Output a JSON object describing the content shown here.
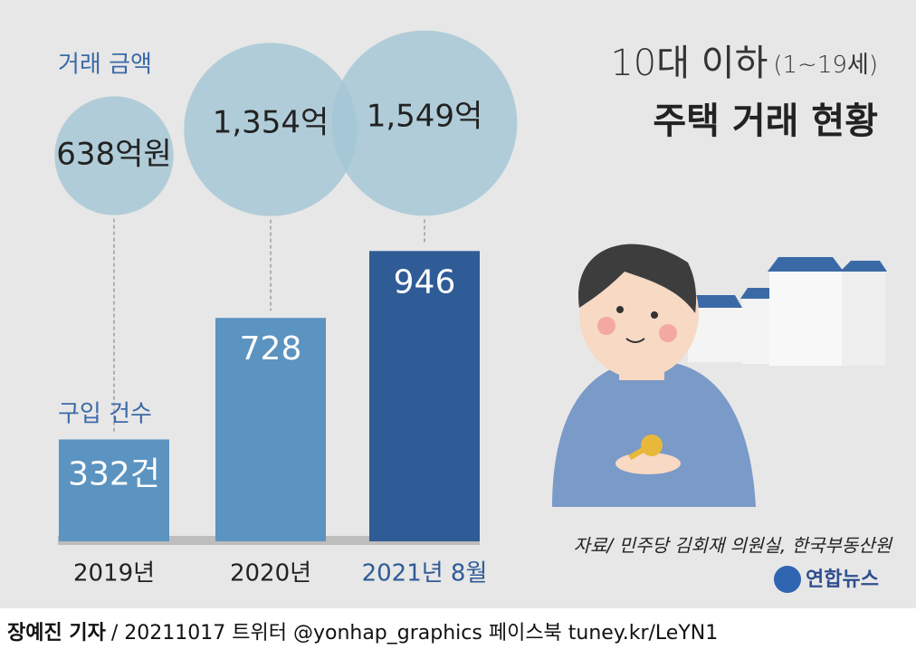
{
  "chart_data": {
    "type": "bar",
    "title": "10대 이하",
    "title_note": "(1~19세)",
    "subtitle": "주택 거래 현황",
    "categories": [
      "2019년",
      "2020년",
      "2021년 8월"
    ],
    "series": [
      {
        "name": "구입 건수",
        "colors": [
          "#5b93c1",
          "#5b93c1",
          "#2f5b96"
        ],
        "values": [
          332,
          728,
          946
        ],
        "value_labels": [
          "332건",
          "728",
          "946"
        ]
      },
      {
        "name": "거래 금액",
        "color": "#a4c6d4",
        "values": [
          638,
          1354,
          1549
        ],
        "value_labels": [
          "638억원",
          "1,354억",
          "1,549억"
        ]
      }
    ],
    "source": "자료/ 민주당 김회재 의원실, 한국부동산원",
    "logo": "연합뉴스",
    "byline": "장예진 기자",
    "credit": "/ 20211017 트위터 @yonhap_graphics  페이스북 tuney.kr/LeYN1"
  }
}
